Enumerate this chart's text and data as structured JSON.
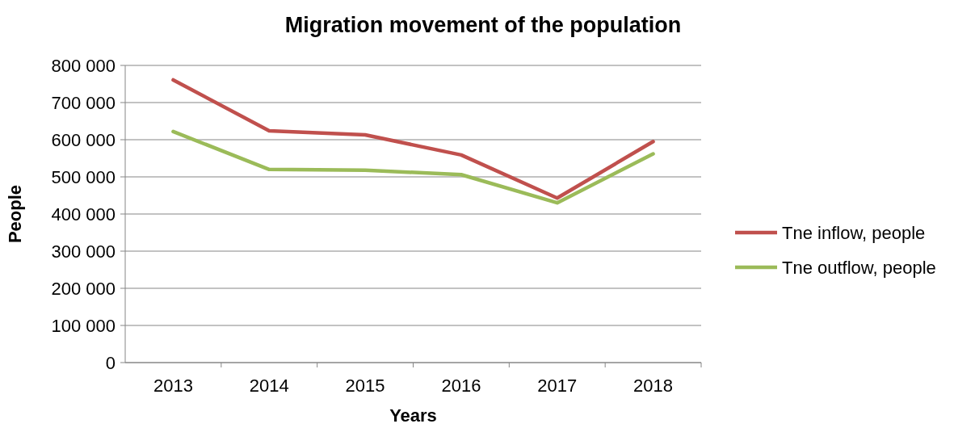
{
  "chart_data": {
    "type": "line",
    "title": "Migration movement of the population",
    "xlabel": "Years",
    "ylabel": "People",
    "categories": [
      "2013",
      "2014",
      "2015",
      "2016",
      "2017",
      "2018"
    ],
    "series": [
      {
        "name": "Tne inflow, people",
        "color": "#c0504d",
        "values": [
          761000,
          624000,
          613000,
          559000,
          443000,
          595000
        ]
      },
      {
        "name": "Tne outflow, people",
        "color": "#9bbb59",
        "values": [
          622000,
          520000,
          518000,
          506000,
          430000,
          562000
        ]
      }
    ],
    "ylim": [
      0,
      800000
    ],
    "yticks": [
      {
        "value": 0,
        "label": "0"
      },
      {
        "value": 100000,
        "label": "100 000"
      },
      {
        "value": 200000,
        "label": "200 000"
      },
      {
        "value": 300000,
        "label": "300 000"
      },
      {
        "value": 400000,
        "label": "400 000"
      },
      {
        "value": 500000,
        "label": "500 000"
      },
      {
        "value": 600000,
        "label": "600 000"
      },
      {
        "value": 700000,
        "label": "700 000"
      },
      {
        "value": 800000,
        "label": "800 000"
      }
    ],
    "grid": "y",
    "legend": "right",
    "marker": "none",
    "line_style": "solid"
  }
}
